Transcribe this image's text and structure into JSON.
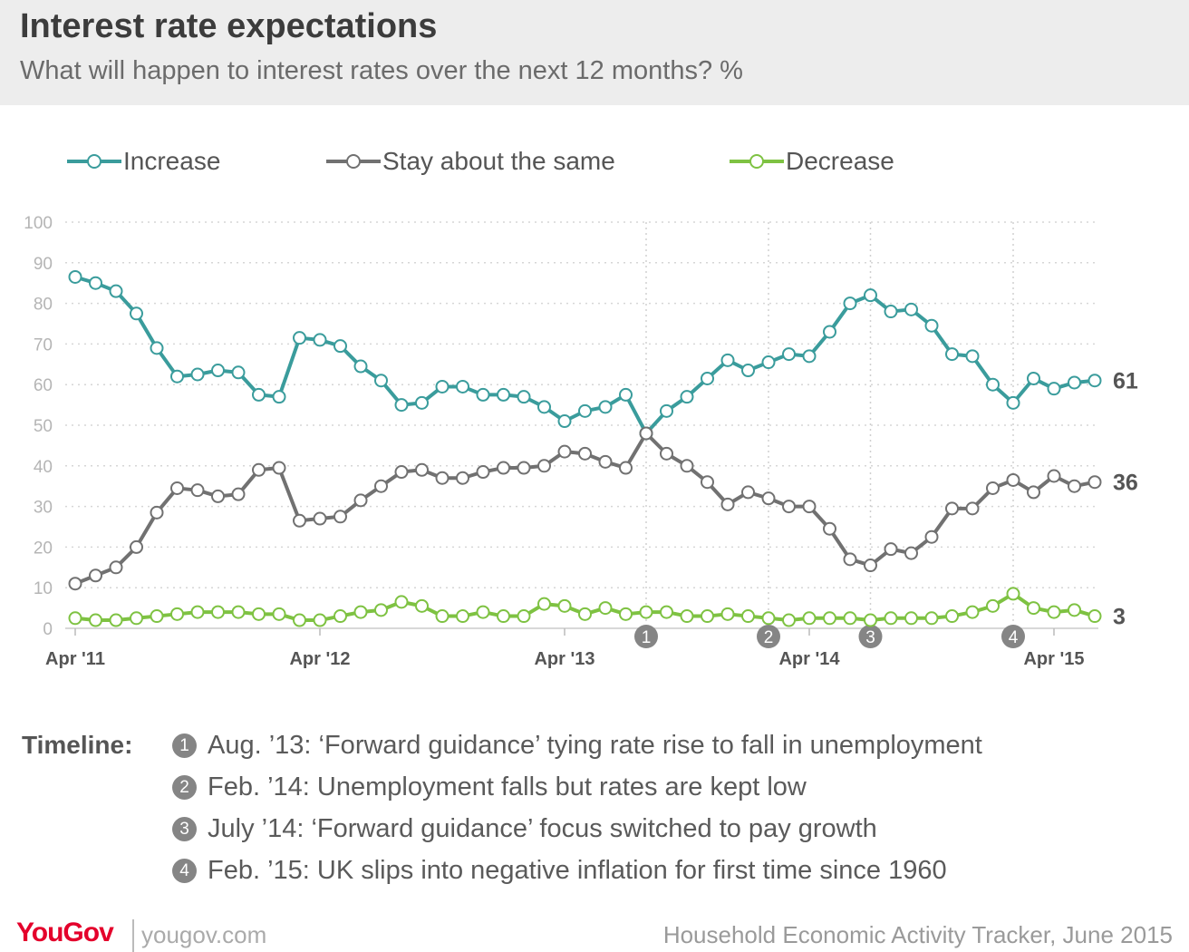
{
  "header": {
    "title": "Interest rate expectations",
    "subtitle": "What will happen to interest rates over the next 12 months? %"
  },
  "legend": [
    {
      "label": "Increase",
      "color": "#3a9c9c"
    },
    {
      "label": "Stay about the same",
      "color": "#717171"
    },
    {
      "label": "Decrease",
      "color": "#7ec242"
    }
  ],
  "chart_data": {
    "type": "line",
    "ylim": [
      0,
      100
    ],
    "yticks": [
      "0",
      "10",
      "20",
      "30",
      "40",
      "50",
      "60",
      "70",
      "80",
      "90",
      "100"
    ],
    "x_tick_labels": [
      "Apr '11",
      "Apr '12",
      "Apr '13",
      "Apr '14",
      "Apr '15"
    ],
    "grid": "horizontal dotted",
    "legend_position": "top",
    "series": [
      {
        "name": "Increase",
        "color": "#3a9c9c",
        "end_label": "61",
        "values": [
          86.5,
          85,
          83,
          77.5,
          69,
          62,
          62.5,
          63.5,
          63,
          57.5,
          57,
          71.5,
          71,
          69.5,
          64.5,
          61,
          55,
          55.5,
          59.5,
          59.5,
          57.5,
          57.5,
          57,
          54.5,
          51,
          53.5,
          54.5,
          57.5,
          48,
          53.5,
          57,
          61.5,
          66,
          63.5,
          65.5,
          67.5,
          67,
          73,
          80,
          82,
          78,
          78.5,
          74.5,
          67.5,
          67,
          60,
          55.5,
          61.5,
          59,
          60.5,
          61
        ]
      },
      {
        "name": "Stay about the same",
        "color": "#717171",
        "end_label": "36",
        "values": [
          11,
          13,
          15,
          20,
          28.5,
          34.5,
          34,
          32.5,
          33,
          39,
          39.5,
          26.5,
          27,
          27.5,
          31.5,
          35,
          38.5,
          39,
          37,
          37,
          38.5,
          39.5,
          39.5,
          40,
          43.5,
          43,
          41,
          39.5,
          48,
          43,
          40,
          36,
          30.5,
          33.5,
          32,
          30,
          30,
          24.5,
          17,
          15.5,
          19.5,
          18.5,
          22.5,
          29.5,
          29.5,
          34.5,
          36.5,
          33.5,
          37.5,
          35,
          36
        ]
      },
      {
        "name": "Decrease",
        "color": "#7ec242",
        "end_label": "3",
        "values": [
          2.5,
          2,
          2,
          2.5,
          3,
          3.5,
          4,
          4,
          4,
          3.5,
          3.5,
          2,
          2,
          3,
          4,
          4.5,
          6.5,
          5.5,
          3,
          3,
          4,
          3,
          3,
          6,
          5.5,
          3.5,
          5,
          3.5,
          4,
          4,
          3,
          3,
          3.5,
          3,
          2.5,
          2,
          2.5,
          2.5,
          2.5,
          2,
          2.5,
          2.5,
          2.5,
          3,
          4,
          5.5,
          8.5,
          5,
          4,
          4.5,
          3
        ]
      }
    ],
    "annotations": [
      {
        "number": "1",
        "index": 28
      },
      {
        "number": "2",
        "index": 34
      },
      {
        "number": "3",
        "index": 39
      },
      {
        "number": "4",
        "index": 46
      }
    ]
  },
  "timeline": {
    "label": "Timeline:",
    "items": [
      {
        "num": "1",
        "text": "Aug. ’13: ‘Forward guidance’ tying rate rise to fall in unemployment"
      },
      {
        "num": "2",
        "text": "Feb. ’14: Unemployment falls but rates are kept low"
      },
      {
        "num": "3",
        "text": "July ’14: ‘Forward guidance’ focus switched to pay growth"
      },
      {
        "num": "4",
        "text": "Feb. ’15: UK slips into negative inflation for first time since 1960"
      }
    ]
  },
  "footer": {
    "logo": "YouGov",
    "site": "yougov.com",
    "source": "Household Economic Activity Tracker, June 2015"
  }
}
